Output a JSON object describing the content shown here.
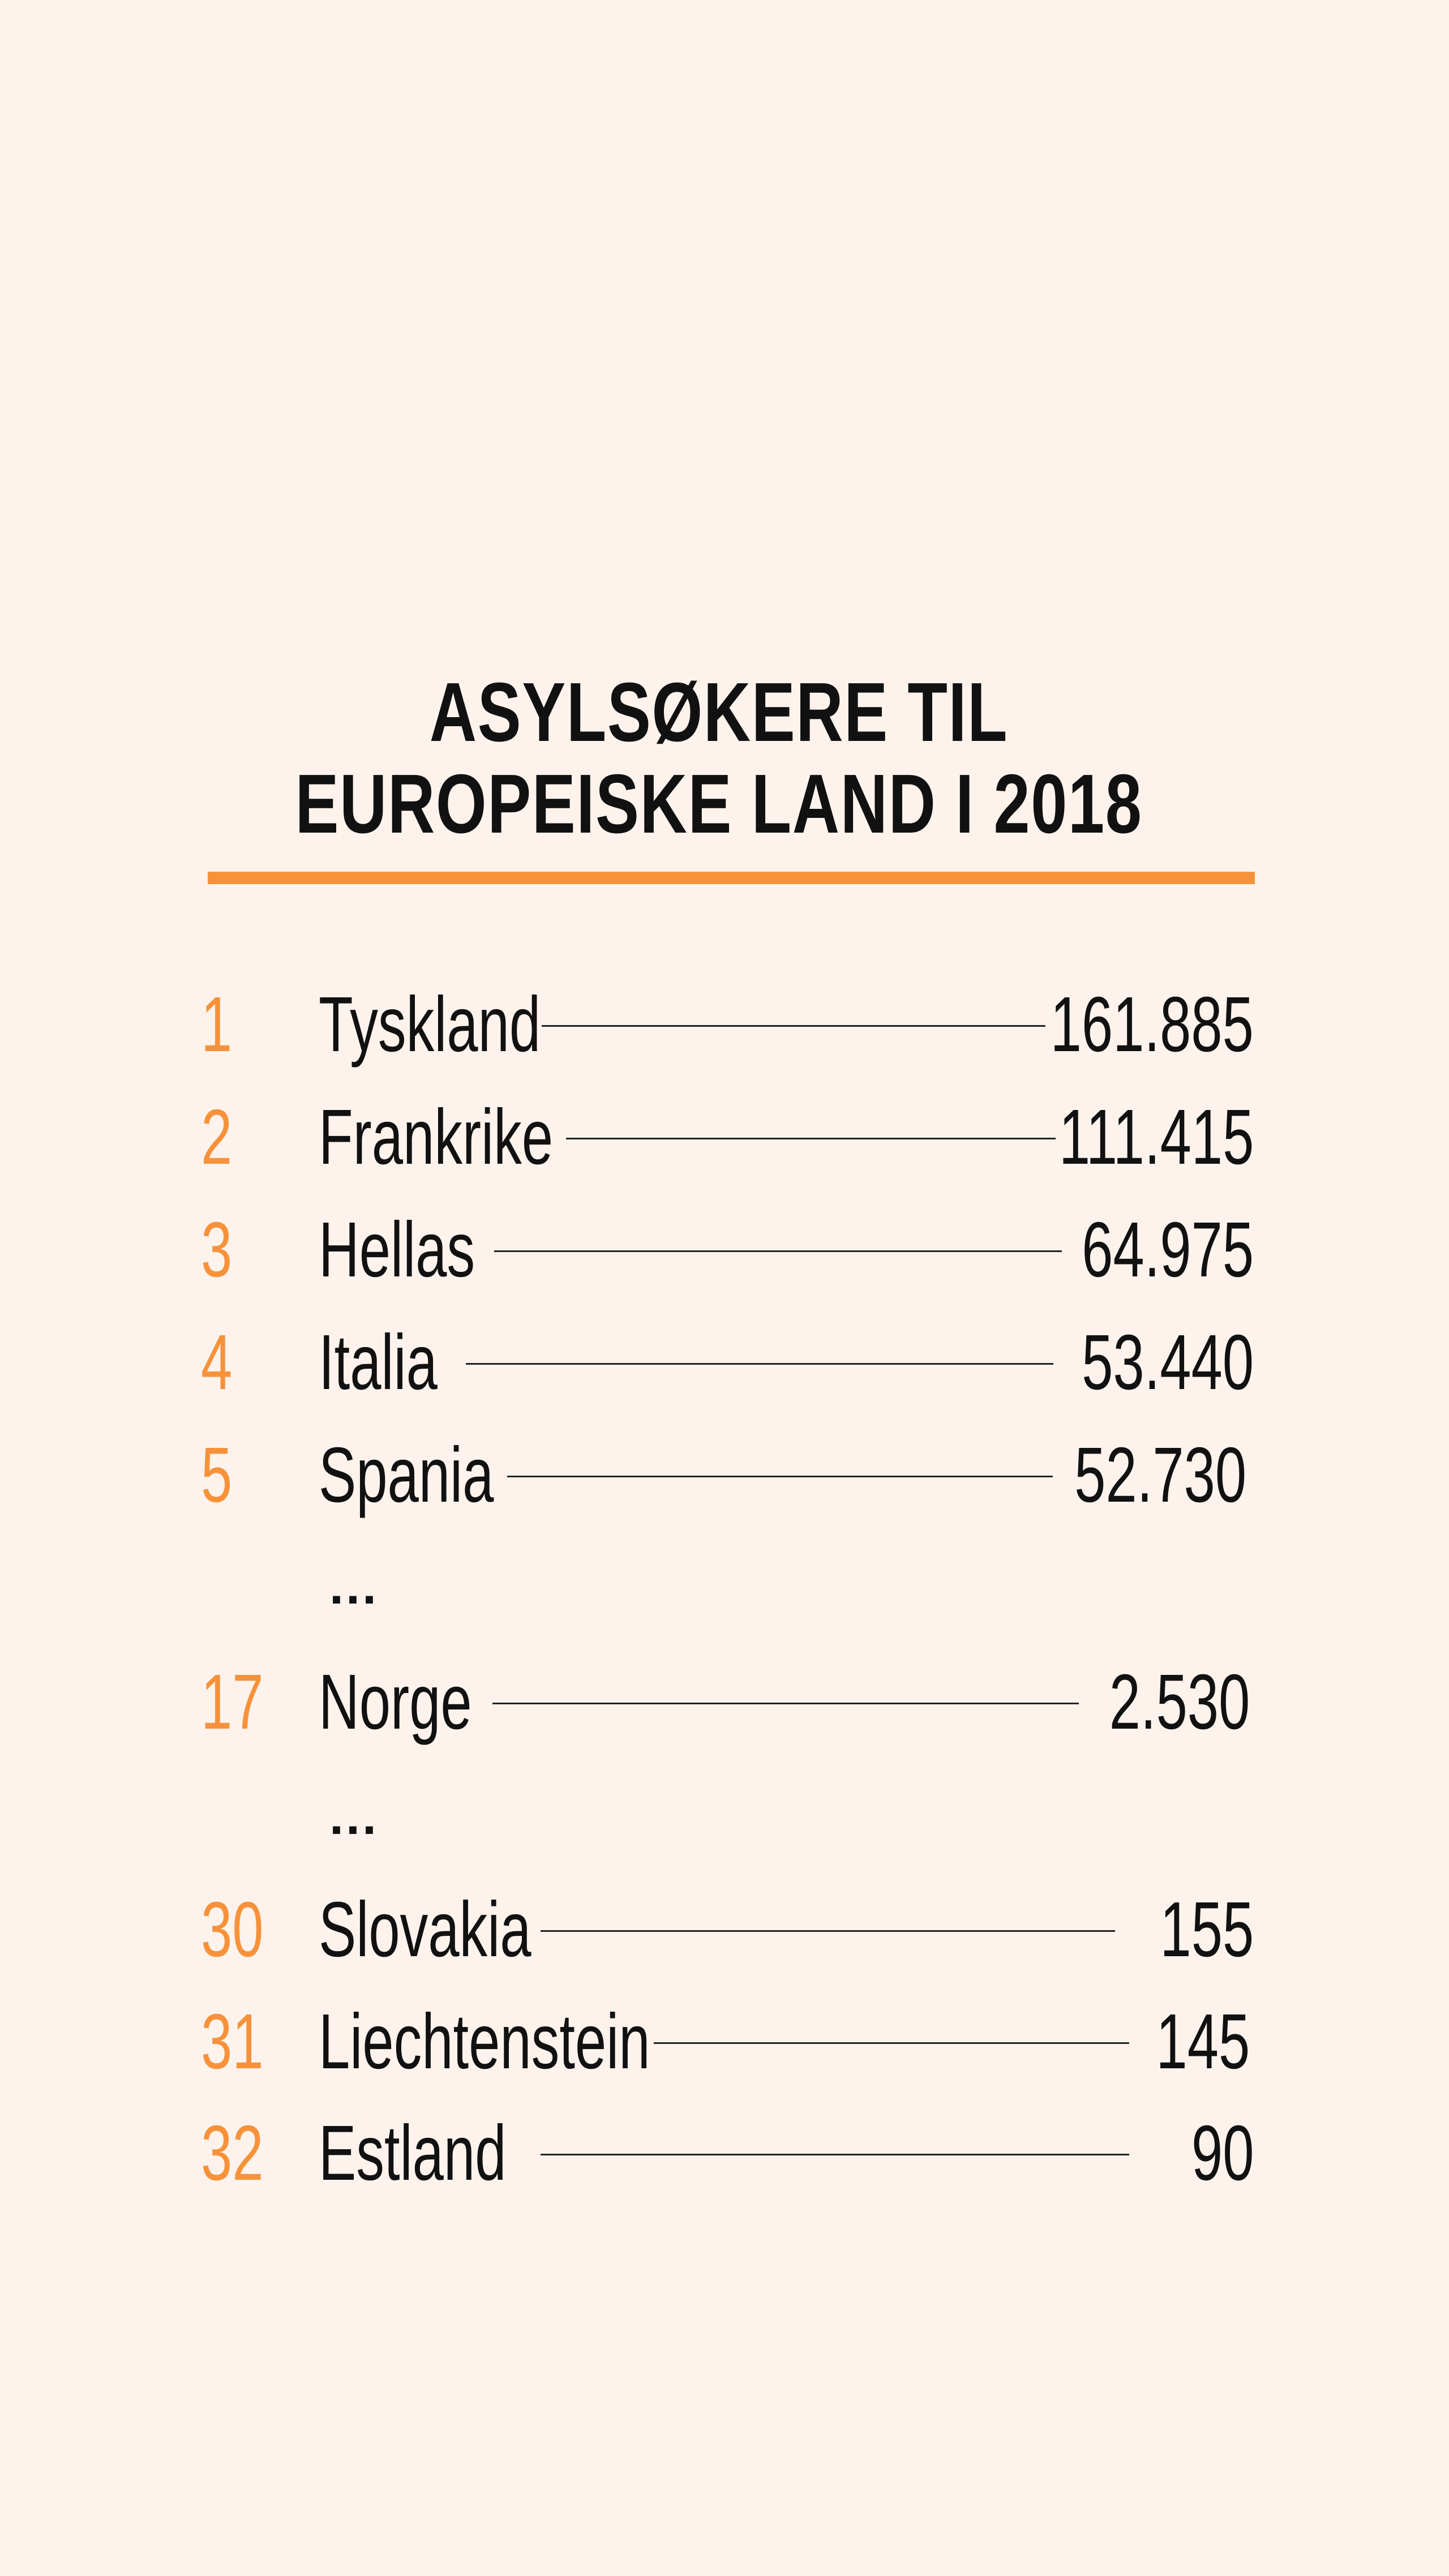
{
  "title_line1": "ASYLSØKERE TIL",
  "title_line2": "EUROPEISKE LAND I 2018",
  "ellipsis": "...",
  "colors": {
    "background": "#fdf3ec",
    "accent": "#f7923a",
    "text": "#111111"
  },
  "chart_data": {
    "type": "table",
    "title": "ASYLSØKERE TIL EUROPEISKE LAND I 2018",
    "rows": [
      {
        "rank": "1",
        "country": "Tyskland",
        "value": "161.885"
      },
      {
        "rank": "2",
        "country": "Frankrike",
        "value": "111.415"
      },
      {
        "rank": "3",
        "country": "Hellas",
        "value": "64.975"
      },
      {
        "rank": "4",
        "country": "Italia",
        "value": "53.440"
      },
      {
        "rank": "5",
        "country": "Spania",
        "value": "52.730"
      },
      {
        "rank": "17",
        "country": "Norge",
        "value": "2.530"
      },
      {
        "rank": "30",
        "country": "Slovakia",
        "value": "155"
      },
      {
        "rank": "31",
        "country": "Liechtenstein",
        "value": "145"
      },
      {
        "rank": "32",
        "country": "Estland",
        "value": "90"
      }
    ]
  }
}
